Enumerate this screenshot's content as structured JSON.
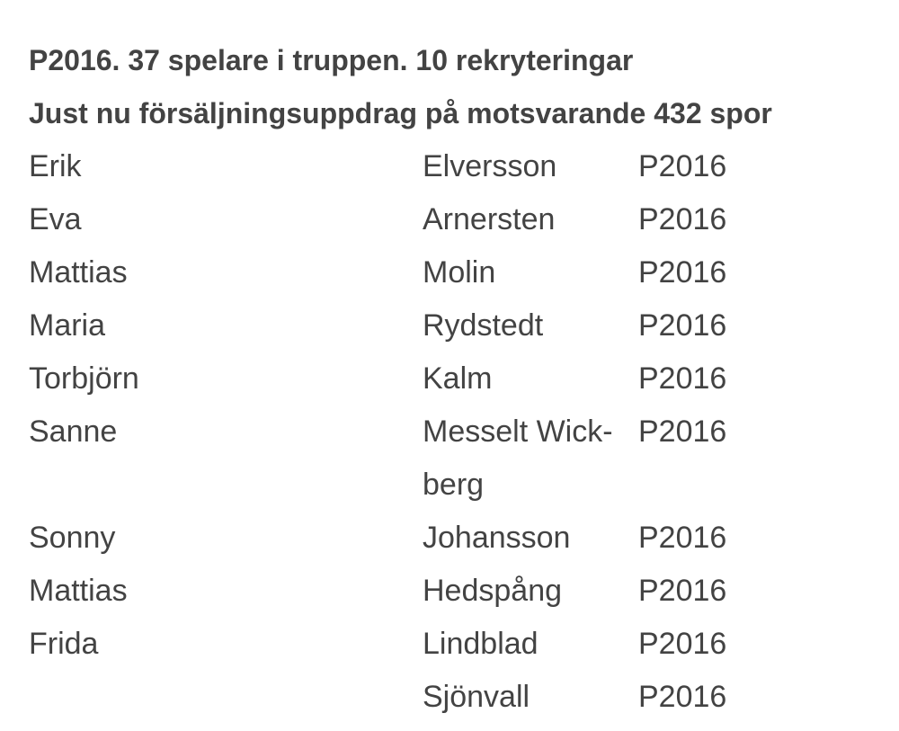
{
  "header": {
    "title": "P2016. 37 spelare i truppen. 10 rekryteringar",
    "subtitle": "Just nu försäljningsuppdrag på motsvarande 432 spor"
  },
  "table": {
    "rows": [
      {
        "first": "Erik",
        "last": "Elversson",
        "team": "P2016"
      },
      {
        "first": "Eva",
        "last": "Arnersten",
        "team": "P2016"
      },
      {
        "first": "Mattias",
        "last": "Molin",
        "team": "P2016"
      },
      {
        "first": "Maria",
        "last": "Rydstedt",
        "team": "P2016"
      },
      {
        "first": "Torbjörn",
        "last": "Kalm",
        "team": "P2016"
      },
      {
        "first": "Sanne",
        "last": "Messelt Wick­berg",
        "team": "P2016"
      },
      {
        "first": "Sonny",
        "last": "Johansson",
        "team": "P2016"
      },
      {
        "first": "Mattias",
        "last": "Hedspång",
        "team": "P2016"
      },
      {
        "first": "Frida",
        "last": "Lindblad",
        "team": "P2016"
      },
      {
        "last": "Sjönvall",
        "team": "P2016"
      }
    ]
  }
}
